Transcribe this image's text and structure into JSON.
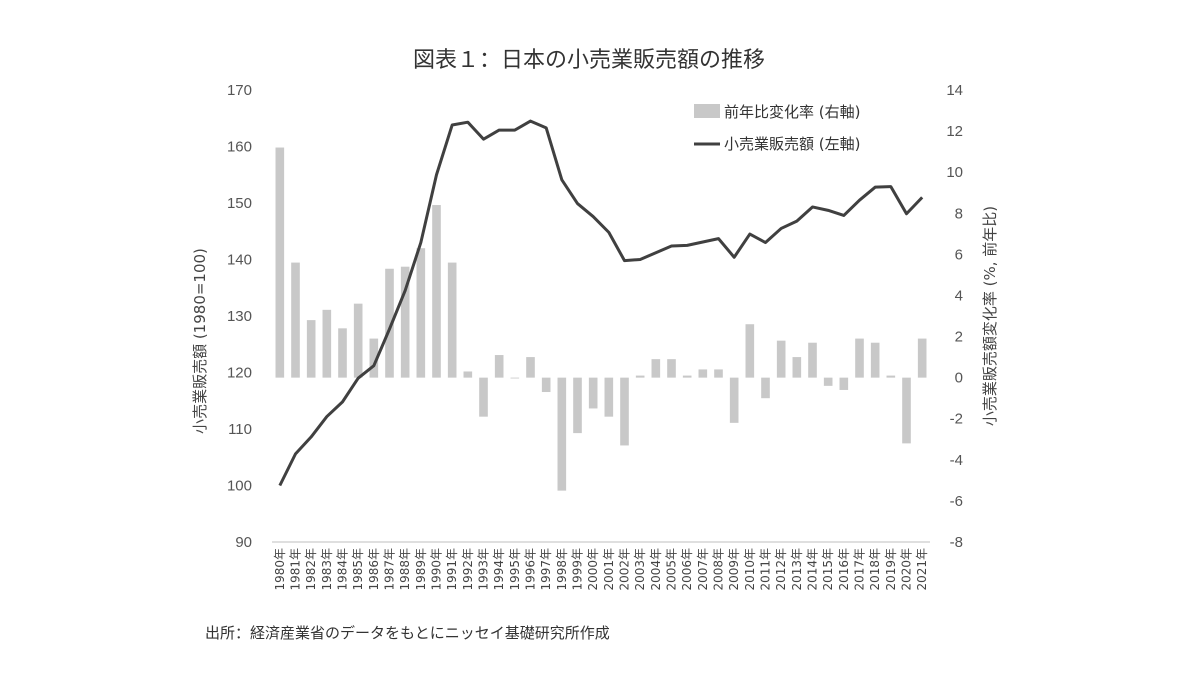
{
  "title": "図表１：日本の小売業販売額の推移",
  "source": "出所：経済産業省のデータをもとにニッセイ基礎研究所作成",
  "chart_data": {
    "type": "bar+line",
    "categories": [
      "1980年",
      "1981年",
      "1982年",
      "1983年",
      "1984年",
      "1985年",
      "1986年",
      "1987年",
      "1988年",
      "1989年",
      "1990年",
      "1991年",
      "1992年",
      "1993年",
      "1994年",
      "1995年",
      "1996年",
      "1997年",
      "1998年",
      "1999年",
      "2000年",
      "2001年",
      "2002年",
      "2003年",
      "2004年",
      "2005年",
      "2006年",
      "2007年",
      "2008年",
      "2009年",
      "2010年",
      "2011年",
      "2012年",
      "2013年",
      "2014年",
      "2015年",
      "2016年",
      "2017年",
      "2018年",
      "2019年",
      "2020年",
      "2021年"
    ],
    "series": [
      {
        "name": "前年比変化率 (右軸)",
        "type": "bar",
        "axis": "right",
        "color": "#c8c8c8",
        "values": [
          11.2,
          5.6,
          2.8,
          3.3,
          2.4,
          3.6,
          1.9,
          5.3,
          5.4,
          6.3,
          8.4,
          5.6,
          0.3,
          -1.9,
          1.1,
          0.0,
          1.0,
          -0.7,
          -5.5,
          -2.7,
          -1.5,
          -1.9,
          -3.3,
          0.1,
          0.9,
          0.9,
          0.1,
          0.4,
          0.4,
          -2.2,
          2.6,
          -1.0,
          1.8,
          1.0,
          1.7,
          -0.4,
          -0.6,
          1.9,
          1.7,
          0.1,
          -3.2,
          1.9
        ]
      },
      {
        "name": "小売業販売額 (左軸)",
        "type": "line",
        "axis": "left",
        "color": "#404040",
        "values": [
          100.0,
          105.6,
          108.6,
          112.2,
          114.8,
          119.0,
          121.2,
          127.7,
          134.5,
          143.0,
          155.0,
          163.8,
          164.3,
          161.3,
          162.9,
          162.9,
          164.5,
          163.3,
          154.1,
          149.9,
          147.6,
          144.8,
          139.8,
          140.0,
          141.2,
          142.4,
          142.5,
          143.1,
          143.7,
          140.4,
          144.5,
          143.0,
          145.5,
          146.8,
          149.3,
          148.7,
          147.8,
          150.5,
          152.8,
          152.9,
          148.1,
          151.0
        ]
      }
    ],
    "ylabel_left": "小売業販売額 (1980=100)",
    "ylabel_right": "小売業販売額変化率 (%, 前年比)",
    "ylim_left": [
      90,
      170
    ],
    "yticks_left": [
      90,
      100,
      110,
      120,
      130,
      140,
      150,
      160,
      170
    ],
    "ylim_right": [
      -8,
      14
    ],
    "yticks_right": [
      -8,
      -6,
      -4,
      -2,
      0,
      2,
      4,
      6,
      8,
      10,
      12,
      14
    ],
    "grid": false,
    "legend_position": "top-right"
  }
}
